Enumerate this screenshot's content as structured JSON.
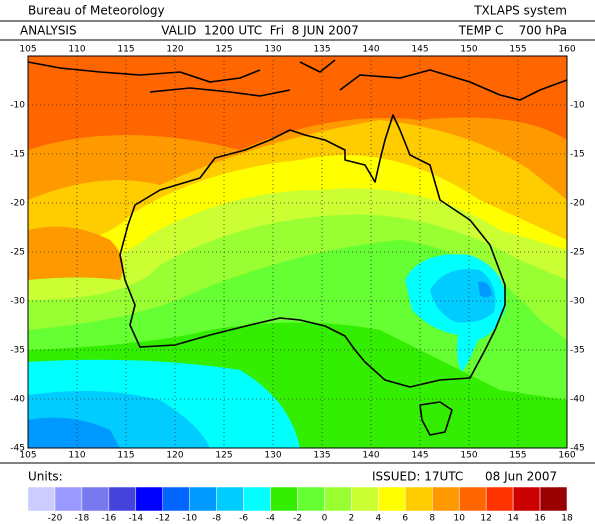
{
  "header": {
    "title": "Bureau of Meteorology",
    "system": "TXLAPS system",
    "analysis": "ANALYSIS",
    "valid": "VALID  1200 UTC  Fri  8 JUN 2007",
    "field": "TEMP C    700 hPa"
  },
  "map": {
    "lon_ticks": [
      105,
      110,
      115,
      120,
      125,
      130,
      135,
      140,
      145,
      150,
      155,
      160
    ],
    "lat_ticks": [
      -10,
      -15,
      -20,
      -25,
      -30,
      -35,
      -40,
      -45
    ]
  },
  "footer": {
    "units": "Units:",
    "issued": "ISSUED: 17UTC",
    "date": "08 Jun 2007"
  },
  "legend": {
    "labels": [
      -20,
      -18,
      -16,
      -14,
      -12,
      -10,
      -8,
      -6,
      -4,
      -2,
      0,
      2,
      4,
      6,
      8,
      10,
      12,
      14,
      16,
      18
    ],
    "colors": [
      "#ccccff",
      "#9999ff",
      "#7777ee",
      "#4444dd",
      "#0000ff",
      "#0066ff",
      "#0099ff",
      "#00ccff",
      "#00ffff",
      "#33ee00",
      "#66ff33",
      "#99ff33",
      "#ccff33",
      "#ffff00",
      "#ffcc00",
      "#ff9900",
      "#ff6600",
      "#ff3300",
      "#cc0000",
      "#990000"
    ]
  }
}
